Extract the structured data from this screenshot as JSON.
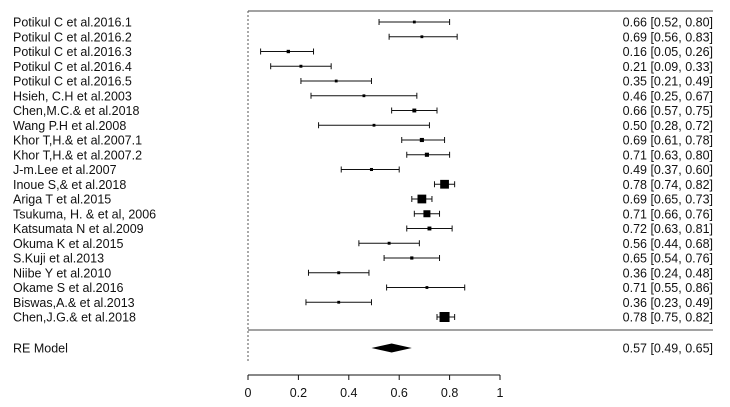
{
  "chart_data": {
    "type": "forest",
    "title": "",
    "xlabel": "",
    "ylabel": "",
    "xlim": [
      0,
      1
    ],
    "x_ticks": [
      "0",
      "0.2",
      "0.4",
      "0.6",
      "0.8",
      "1"
    ],
    "reference_line": 0,
    "grid": false,
    "studies": [
      {
        "label": "Potikul C et al.2016.1",
        "est": 0.66,
        "lo": 0.52,
        "hi": 0.8,
        "text": "0.66 [0.52, 0.80]"
      },
      {
        "label": "Potikul C et al.2016.2",
        "est": 0.69,
        "lo": 0.56,
        "hi": 0.83,
        "text": "0.69 [0.56, 0.83]"
      },
      {
        "label": "Potikul C et al.2016.3",
        "est": 0.16,
        "lo": 0.05,
        "hi": 0.26,
        "text": "0.16 [0.05, 0.26]"
      },
      {
        "label": "Potikul C et al.2016.4",
        "est": 0.21,
        "lo": 0.09,
        "hi": 0.33,
        "text": "0.21 [0.09, 0.33]"
      },
      {
        "label": "Potikul C et al.2016.5",
        "est": 0.35,
        "lo": 0.21,
        "hi": 0.49,
        "text": "0.35 [0.21, 0.49]"
      },
      {
        "label": "Hsieh, C.H et al.2003",
        "est": 0.46,
        "lo": 0.25,
        "hi": 0.67,
        "text": "0.46 [0.25, 0.67]"
      },
      {
        "label": "Chen,M.C.& et al.2018",
        "est": 0.66,
        "lo": 0.57,
        "hi": 0.75,
        "text": "0.66 [0.57, 0.75]"
      },
      {
        "label": "Wang P.H et al.2008",
        "est": 0.5,
        "lo": 0.28,
        "hi": 0.72,
        "text": "0.50 [0.28, 0.72]"
      },
      {
        "label": "Khor T,H.& et al.2007.1",
        "est": 0.69,
        "lo": 0.61,
        "hi": 0.78,
        "text": "0.69 [0.61, 0.78]"
      },
      {
        "label": "Khor T,H.& et al.2007.2",
        "est": 0.71,
        "lo": 0.63,
        "hi": 0.8,
        "text": "0.71 [0.63, 0.80]"
      },
      {
        "label": "J-m.Lee et al.2007",
        "est": 0.49,
        "lo": 0.37,
        "hi": 0.6,
        "text": "0.49 [0.37, 0.60]"
      },
      {
        "label": "Inoue S,& et al.2018",
        "est": 0.78,
        "lo": 0.74,
        "hi": 0.82,
        "text": "0.78 [0.74, 0.82]"
      },
      {
        "label": "Ariga T et al.2015",
        "est": 0.69,
        "lo": 0.65,
        "hi": 0.73,
        "text": "0.69 [0.65, 0.73]"
      },
      {
        "label": "Tsukuma, H. & et al, 2006",
        "est": 0.71,
        "lo": 0.66,
        "hi": 0.76,
        "text": "0.71 [0.66, 0.76]"
      },
      {
        "label": "Katsumata N et al.2009",
        "est": 0.72,
        "lo": 0.63,
        "hi": 0.81,
        "text": "0.72 [0.63, 0.81]"
      },
      {
        "label": "Okuma K et al.2015",
        "est": 0.56,
        "lo": 0.44,
        "hi": 0.68,
        "text": "0.56 [0.44, 0.68]"
      },
      {
        "label": "S.Kuji et al.2013",
        "est": 0.65,
        "lo": 0.54,
        "hi": 0.76,
        "text": "0.65 [0.54, 0.76]"
      },
      {
        "label": "Niibe Y et al.2010",
        "est": 0.36,
        "lo": 0.24,
        "hi": 0.48,
        "text": "0.36 [0.24, 0.48]"
      },
      {
        "label": "Okame S et al.2016",
        "est": 0.71,
        "lo": 0.55,
        "hi": 0.86,
        "text": "0.71 [0.55, 0.86]"
      },
      {
        "label": "Biswas,A.& et al.2013",
        "est": 0.36,
        "lo": 0.23,
        "hi": 0.49,
        "text": "0.36 [0.23, 0.49]"
      },
      {
        "label": "Chen,J.G.& et al.2018",
        "est": 0.78,
        "lo": 0.75,
        "hi": 0.82,
        "text": "0.78 [0.75, 0.82]"
      }
    ],
    "summary": {
      "label": "RE Model",
      "est": 0.57,
      "lo": 0.49,
      "hi": 0.65,
      "text": "0.57 [0.49, 0.65]"
    }
  }
}
